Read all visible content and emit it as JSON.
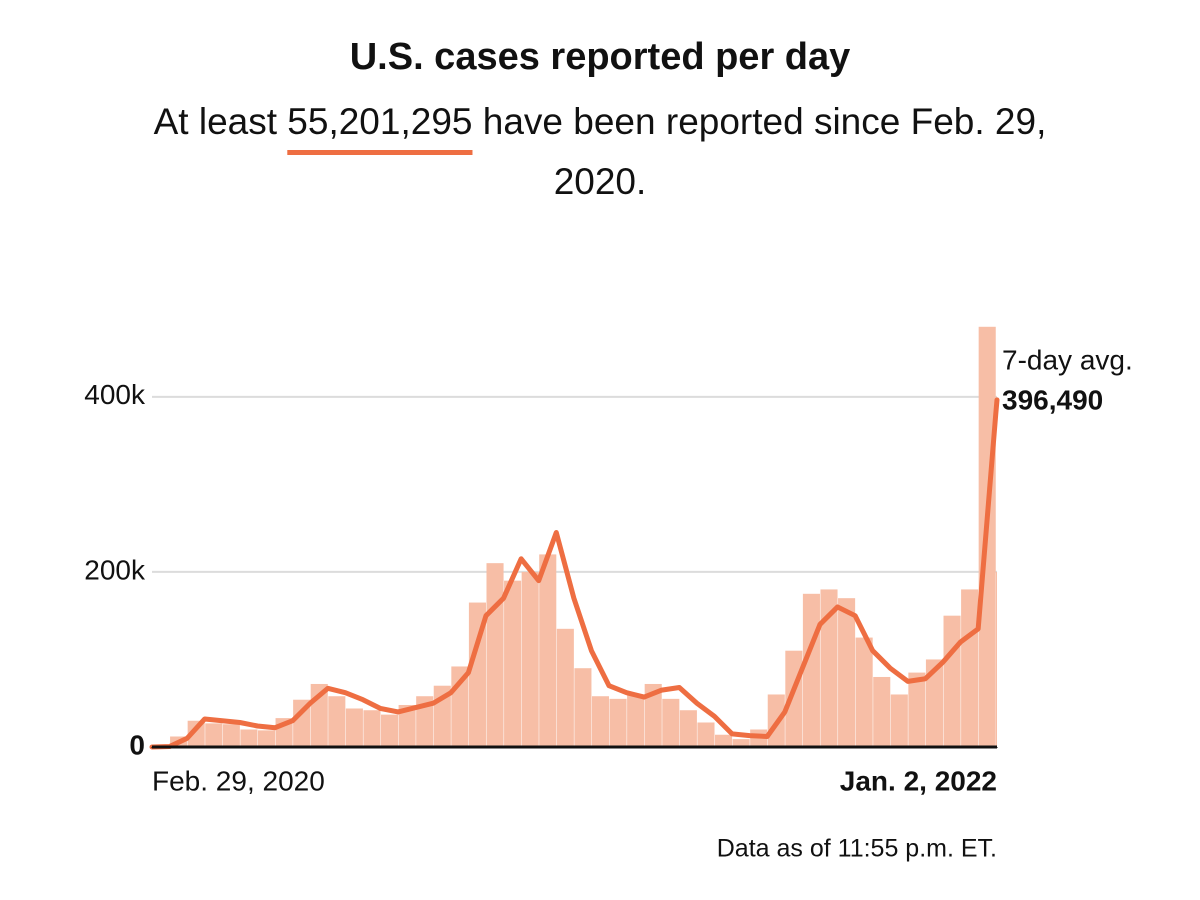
{
  "chart_data": {
    "type": "bar",
    "title": "U.S. cases reported per day",
    "subtitle_before": "At least",
    "total": {
      "value": 55201295,
      "label": "55,201,295"
    },
    "subtitle_after": "have been reported since Feb. 29, 2020.",
    "note": "Data as of 11:55 p.m. ET.",
    "x": [
      "2020-02-29",
      "2020-03-14",
      "2020-03-28",
      "2020-04-11",
      "2020-04-25",
      "2020-05-09",
      "2020-05-23",
      "2020-06-06",
      "2020-06-20",
      "2020-07-04",
      "2020-07-18",
      "2020-08-01",
      "2020-08-15",
      "2020-08-29",
      "2020-09-12",
      "2020-09-26",
      "2020-10-10",
      "2020-10-24",
      "2020-11-07",
      "2020-11-21",
      "2020-12-05",
      "2020-12-19",
      "2021-01-02",
      "2021-01-16",
      "2021-01-30",
      "2021-02-13",
      "2021-02-27",
      "2021-03-13",
      "2021-03-27",
      "2021-04-10",
      "2021-04-24",
      "2021-05-08",
      "2021-05-22",
      "2021-06-05",
      "2021-06-19",
      "2021-07-03",
      "2021-07-17",
      "2021-07-31",
      "2021-08-14",
      "2021-08-28",
      "2021-09-11",
      "2021-09-25",
      "2021-10-09",
      "2021-10-23",
      "2021-11-06",
      "2021-11-20",
      "2021-12-04",
      "2021-12-18",
      "2022-01-01",
      "2022-01-02"
    ],
    "series": [
      {
        "color": "#f7bea6",
        "values": [
          0,
          700,
          12000,
          30000,
          27000,
          26000,
          20000,
          19000,
          33000,
          54000,
          72000,
          58000,
          44000,
          42000,
          37000,
          48000,
          58000,
          70000,
          92000,
          165000,
          210000,
          190000,
          200000,
          220000,
          135000,
          90000,
          58000,
          55000,
          60000,
          72000,
          55000,
          42000,
          28000,
          14000,
          9000,
          20000,
          60000,
          110000,
          175000,
          180000,
          170000,
          125000,
          80000,
          60000,
          85000,
          100000,
          150000,
          180000,
          480000,
          200000
        ]
      },
      {
        "name": "7-day avg.",
        "type": "line",
        "color": "#ee6e42",
        "values": [
          0,
          500,
          10000,
          32000,
          30000,
          28000,
          24000,
          22000,
          30000,
          50000,
          67000,
          62000,
          54000,
          44000,
          40000,
          45000,
          50000,
          62000,
          85000,
          150000,
          170000,
          215000,
          190000,
          245000,
          170000,
          110000,
          70000,
          62000,
          57000,
          65000,
          68000,
          50000,
          35000,
          15000,
          13000,
          12000,
          40000,
          90000,
          140000,
          160000,
          150000,
          110000,
          90000,
          75000,
          78000,
          97000,
          120000,
          135000,
          380000,
          396490
        ],
        "value_labels": [
          null,
          null,
          null,
          null,
          null,
          null,
          null,
          null,
          null,
          null,
          null,
          null,
          null,
          null,
          null,
          null,
          null,
          null,
          null,
          null,
          null,
          null,
          null,
          null,
          null,
          null,
          null,
          null,
          null,
          null,
          null,
          null,
          null,
          null,
          null,
          null,
          null,
          null,
          null,
          null,
          null,
          null,
          null,
          null,
          null,
          null,
          null,
          null,
          null,
          "396,490"
        ]
      }
    ],
    "xlim": [
      "2020-02-29",
      "2022-01-02"
    ],
    "xticks": [
      {
        "value": "2020-02-29",
        "label": "Feb. 29, 2020"
      },
      {
        "value": "2022-01-02",
        "label": "Jan. 2, 2022"
      }
    ],
    "ylim": [
      0,
      570000
    ],
    "yticks": [
      0,
      {
        "value": 200000,
        "label": "200k"
      },
      {
        "value": 400000,
        "label": "400k"
      }
    ],
    "grid": true
  }
}
